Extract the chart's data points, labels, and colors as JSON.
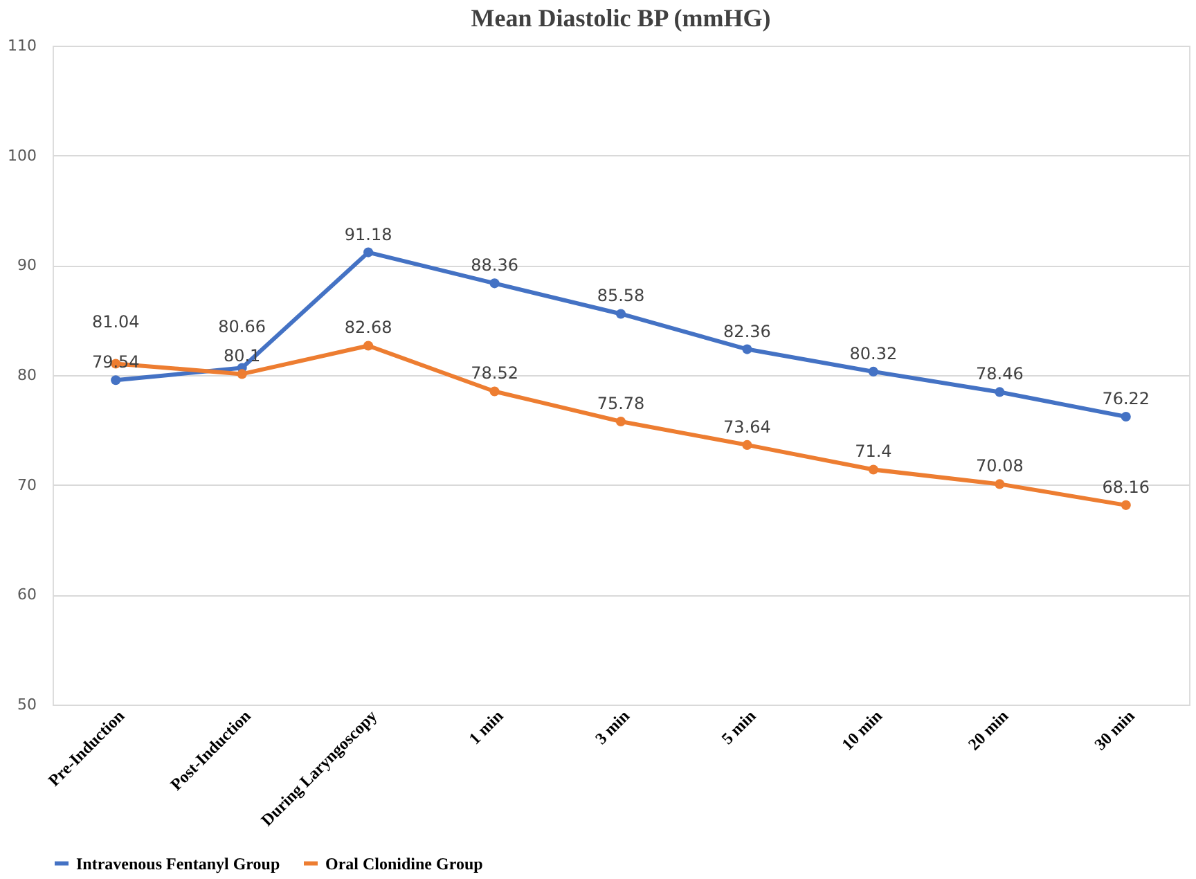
{
  "chart_data": {
    "type": "line",
    "title": "Mean Diastolic BP (mmHG)",
    "categories": [
      "Pre-Induction",
      "Post-Induction",
      "During Laryngoscopy",
      "1 min",
      "3 min",
      "5 min",
      "10 min",
      "20 min",
      "30 min"
    ],
    "series": [
      {
        "name": "Intravenous Fentanyl Group",
        "color": "#4472c4",
        "values": [
          79.54,
          80.66,
          91.18,
          88.36,
          85.58,
          82.36,
          80.32,
          78.46,
          76.22
        ]
      },
      {
        "name": "Oral Clonidine Group",
        "color": "#ed7d31",
        "values": [
          81.04,
          80.1,
          82.68,
          78.52,
          75.78,
          73.64,
          71.4,
          70.08,
          68.16
        ]
      }
    ],
    "ylim": [
      50,
      110
    ],
    "yticks": [
      50,
      60,
      70,
      80,
      90,
      100,
      110
    ],
    "grid": "y",
    "legend": "bottom",
    "marker": "circle",
    "data_labels": true
  }
}
